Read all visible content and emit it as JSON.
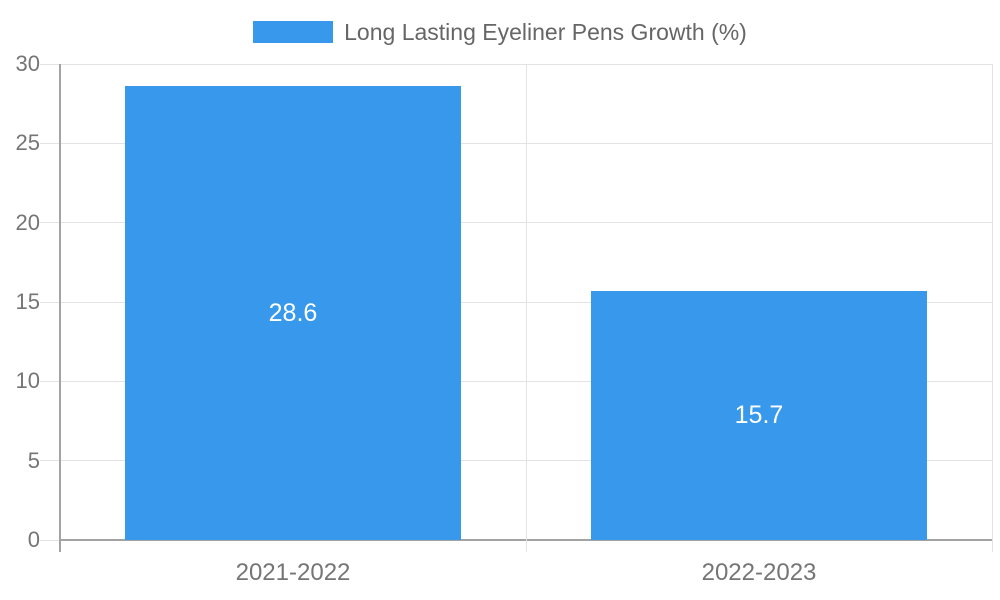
{
  "chart_data": {
    "type": "bar",
    "title": "Long Lasting Eyeliner Pens Growth (%)",
    "categories": [
      "2021-2022",
      "2022-2023"
    ],
    "values": [
      28.6,
      15.7
    ],
    "value_labels": [
      "28.6",
      "15.7"
    ],
    "xlabel": "",
    "ylabel": "",
    "ylim": [
      0,
      30
    ],
    "yticks": [
      0,
      5,
      10,
      15,
      20,
      25,
      30
    ],
    "grid": true,
    "legend_position": "top",
    "colors": {
      "bar": "#3899EC",
      "bar_label_text": "#FFFFFF",
      "legend_text": "#666666",
      "tick_text": "#757575",
      "gridline": "#E3E3E3",
      "axis_line": "#A3A3A3"
    }
  }
}
